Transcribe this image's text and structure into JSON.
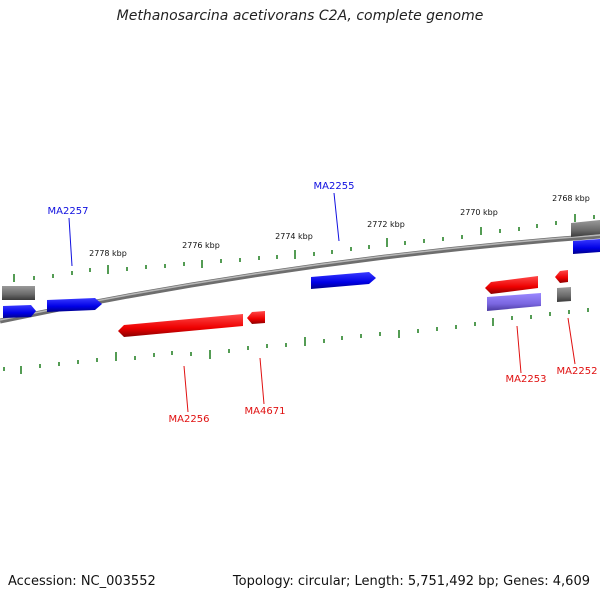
{
  "title": "Methanosarcina acetivorans C2A, complete genome",
  "footer": {
    "accession": "Accession: NC_003552",
    "summary": "Topology: circular; Length: 5,751,492 bp; Genes: 4,609"
  },
  "ruler_labels": [
    "2778 kbp",
    "2776 kbp",
    "2774 kbp",
    "2772 kbp",
    "2770 kbp",
    "2768 kbp"
  ],
  "genes": {
    "forward": [
      "MA2257",
      "MA2255"
    ],
    "reverse": [
      "MA2256",
      "MA4671",
      "MA2253",
      "MA2252"
    ]
  },
  "colors": {
    "forward": "#1010e0",
    "reverse": "#e01010",
    "backbone": "#808080",
    "tick": "#1a7a1a"
  }
}
